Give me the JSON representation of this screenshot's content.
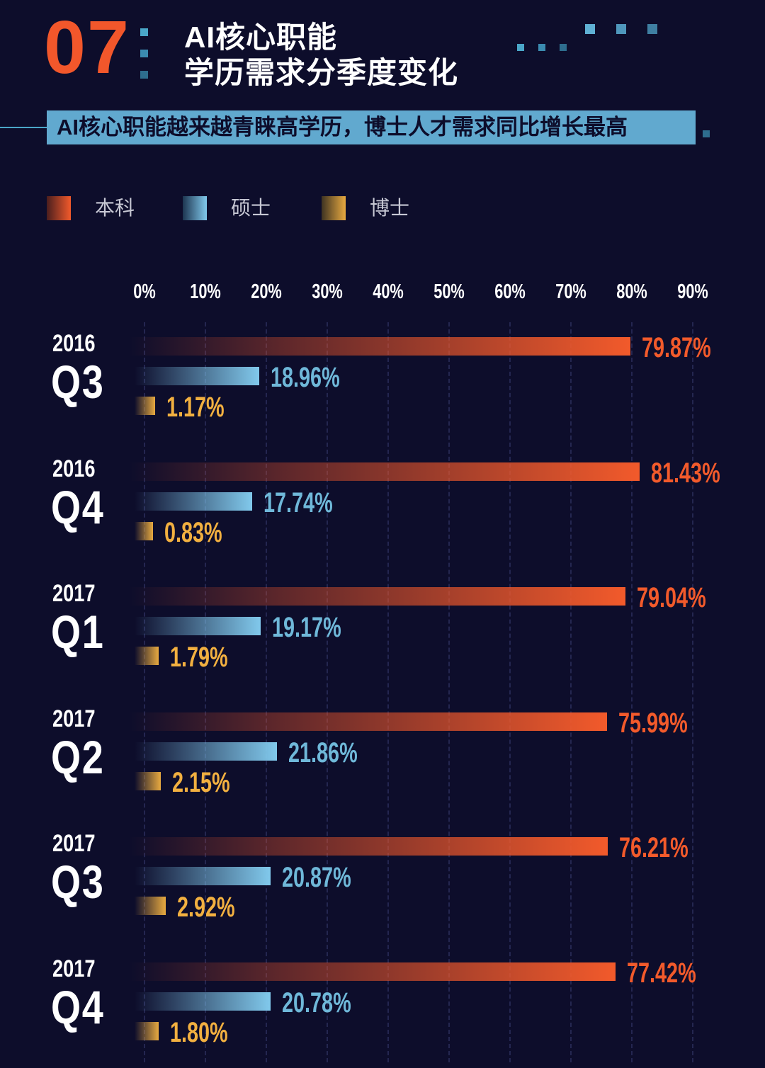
{
  "header": {
    "number": "07",
    "title_line1": "AI核心职能",
    "title_line2": "学历需求分季度变化",
    "subtitle": "AI核心职能越来越青睐高学历，博士人才需求同比增长最高"
  },
  "colors": {
    "bachelor": "#f25a2b",
    "master": "#81c9ec",
    "phd": "#e8aa40",
    "background": "#0d0d2b"
  },
  "chart_data": {
    "type": "bar",
    "orientation": "horizontal",
    "title": "AI核心职能学历需求分季度变化",
    "legend": [
      "本科",
      "硕士",
      "博士"
    ],
    "legend_position": "top-left",
    "x_ticks": [
      "0%",
      "10%",
      "20%",
      "30%",
      "40%",
      "50%",
      "60%",
      "70%",
      "80%",
      "90%"
    ],
    "xlim": [
      0,
      90
    ],
    "grid": true,
    "groups": [
      {
        "year": "2016",
        "quarter": "Q3",
        "values": [
          79.87,
          18.96,
          1.17
        ],
        "labels": [
          "79.87%",
          "18.96%",
          "1.17%"
        ]
      },
      {
        "year": "2016",
        "quarter": "Q4",
        "values": [
          81.43,
          17.74,
          0.83
        ],
        "labels": [
          "81.43%",
          "17.74%",
          "0.83%"
        ]
      },
      {
        "year": "2017",
        "quarter": "Q1",
        "values": [
          79.04,
          19.17,
          1.79
        ],
        "labels": [
          "79.04%",
          "19.17%",
          "1.79%"
        ]
      },
      {
        "year": "2017",
        "quarter": "Q2",
        "values": [
          75.99,
          21.86,
          2.15
        ],
        "labels": [
          "75.99%",
          "21.86%",
          "2.15%"
        ]
      },
      {
        "year": "2017",
        "quarter": "Q3",
        "values": [
          76.21,
          20.87,
          2.92
        ],
        "labels": [
          "76.21%",
          "20.87%",
          "2.92%"
        ]
      },
      {
        "year": "2017",
        "quarter": "Q4",
        "values": [
          77.42,
          20.78,
          1.8
        ],
        "labels": [
          "77.42%",
          "20.78%",
          "1.80%"
        ]
      }
    ]
  }
}
